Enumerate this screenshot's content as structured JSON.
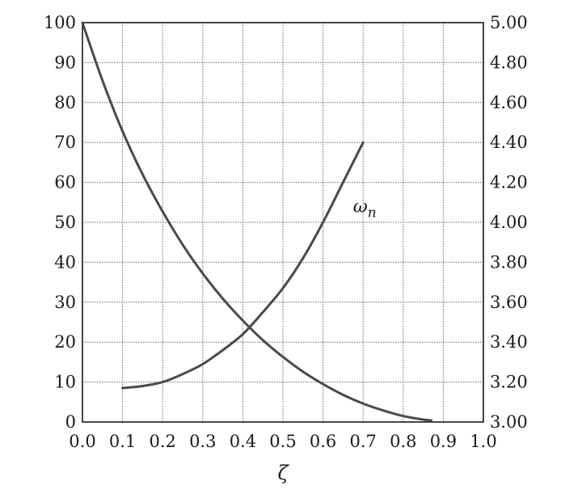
{
  "chart_data": {
    "type": "line",
    "title": "",
    "xlabel": "ζ",
    "ylabel": "",
    "ylabel_right": "",
    "xlim": [
      0.0,
      1.0
    ],
    "ylim": [
      0,
      100
    ],
    "ylim_right": [
      3.0,
      5.0
    ],
    "grid": true,
    "x_ticks": [
      "0.0",
      "0.1",
      "0.2",
      "0.3",
      "0.4",
      "0.5",
      "0.6",
      "0.7",
      "0.8",
      "0.9",
      "1.0"
    ],
    "y_ticks": [
      "0",
      "10",
      "20",
      "30",
      "40",
      "50",
      "60",
      "70",
      "80",
      "90",
      "100"
    ],
    "y_ticks_right": [
      "3.00",
      "3.20",
      "3.40",
      "3.60",
      "3.80",
      "4.00",
      "4.20",
      "4.40",
      "4.60",
      "4.80",
      "5.00"
    ],
    "series": [
      {
        "name": "",
        "axis": "left",
        "color": "#4a4a4a",
        "x": [
          0.0,
          0.05,
          0.1,
          0.15,
          0.2,
          0.25,
          0.3,
          0.35,
          0.4,
          0.45,
          0.5,
          0.55,
          0.6,
          0.65,
          0.7,
          0.75,
          0.8,
          0.85,
          0.87
        ],
        "y": [
          100,
          85.5,
          72.8,
          62.0,
          52.7,
          44.4,
          37.2,
          30.9,
          25.4,
          20.5,
          16.3,
          12.6,
          9.5,
          6.8,
          4.6,
          2.9,
          1.5,
          0.6,
          0.4
        ]
      },
      {
        "name": "ω_n",
        "axis": "right",
        "color": "#4a4a4a",
        "x": [
          0.1,
          0.15,
          0.2,
          0.25,
          0.3,
          0.35,
          0.4,
          0.45,
          0.5,
          0.55,
          0.6,
          0.65,
          0.7
        ],
        "y": [
          3.17,
          3.18,
          3.2,
          3.24,
          3.29,
          3.36,
          3.44,
          3.55,
          3.67,
          3.82,
          4.0,
          4.2,
          4.4
        ]
      }
    ],
    "annotations": [
      {
        "text": "ω",
        "subscript": "n",
        "x": 0.675,
        "y_right": 4.05
      }
    ]
  }
}
